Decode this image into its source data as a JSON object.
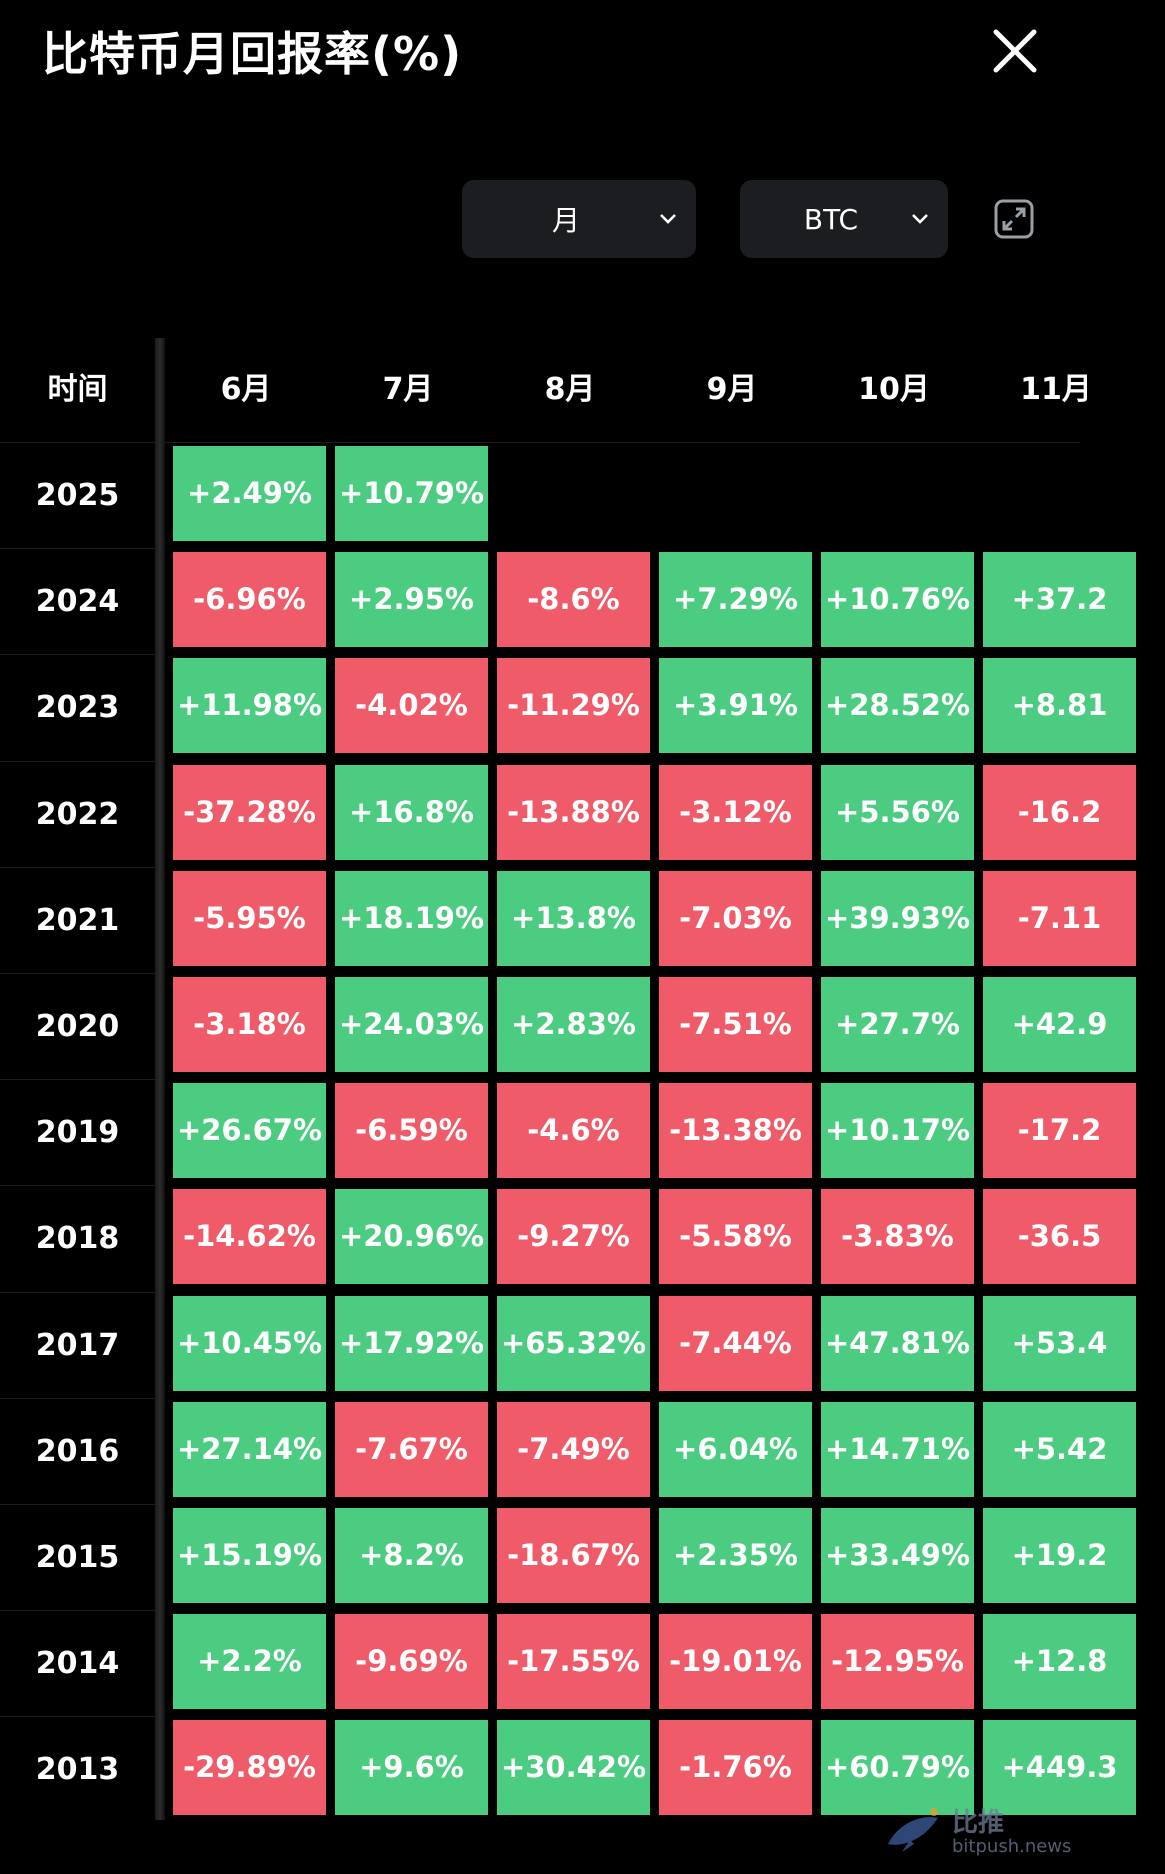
{
  "header": {
    "title": "比特币月回报率(%)",
    "close_icon": "close-icon"
  },
  "controls": {
    "period": {
      "value": "月"
    },
    "asset": {
      "value": "BTC"
    },
    "expand_icon": "expand-icon"
  },
  "table": {
    "corner_label": "时间",
    "months": [
      "6月",
      "7月",
      "8月",
      "9月",
      "10月",
      "11月"
    ],
    "rows": [
      {
        "year": "2025",
        "values": [
          "+2.49%",
          "+10.79%",
          "",
          "",
          "",
          ""
        ]
      },
      {
        "year": "2024",
        "values": [
          "-6.96%",
          "+2.95%",
          "-8.6%",
          "+7.29%",
          "+10.76%",
          "+37.2"
        ]
      },
      {
        "year": "2023",
        "values": [
          "+11.98%",
          "-4.02%",
          "-11.29%",
          "+3.91%",
          "+28.52%",
          "+8.81"
        ]
      },
      {
        "year": "2022",
        "values": [
          "-37.28%",
          "+16.8%",
          "-13.88%",
          "-3.12%",
          "+5.56%",
          "-16.2"
        ]
      },
      {
        "year": "2021",
        "values": [
          "-5.95%",
          "+18.19%",
          "+13.8%",
          "-7.03%",
          "+39.93%",
          "-7.11"
        ]
      },
      {
        "year": "2020",
        "values": [
          "-3.18%",
          "+24.03%",
          "+2.83%",
          "-7.51%",
          "+27.7%",
          "+42.9"
        ]
      },
      {
        "year": "2019",
        "values": [
          "+26.67%",
          "-6.59%",
          "-4.6%",
          "-13.38%",
          "+10.17%",
          "-17.2"
        ]
      },
      {
        "year": "2018",
        "values": [
          "-14.62%",
          "+20.96%",
          "-9.27%",
          "-5.58%",
          "-3.83%",
          "-36.5"
        ]
      },
      {
        "year": "2017",
        "values": [
          "+10.45%",
          "+17.92%",
          "+65.32%",
          "-7.44%",
          "+47.81%",
          "+53.4"
        ]
      },
      {
        "year": "2016",
        "values": [
          "+27.14%",
          "-7.67%",
          "-7.49%",
          "+6.04%",
          "+14.71%",
          "+5.42"
        ]
      },
      {
        "year": "2015",
        "values": [
          "+15.19%",
          "+8.2%",
          "-18.67%",
          "+2.35%",
          "+33.49%",
          "+19.2"
        ]
      },
      {
        "year": "2014",
        "values": [
          "+2.2%",
          "-9.69%",
          "-17.55%",
          "-19.01%",
          "-12.95%",
          "+12.8"
        ]
      },
      {
        "year": "2013",
        "values": [
          "-29.89%",
          "+9.6%",
          "+30.42%",
          "-1.76%",
          "+60.79%",
          "+449.3"
        ]
      }
    ]
  },
  "colors": {
    "positive": "#4ccc81",
    "negative": "#ef5b68",
    "background": "#000000"
  },
  "watermark": {
    "cn": "比推",
    "en": "bitpush.news"
  }
}
